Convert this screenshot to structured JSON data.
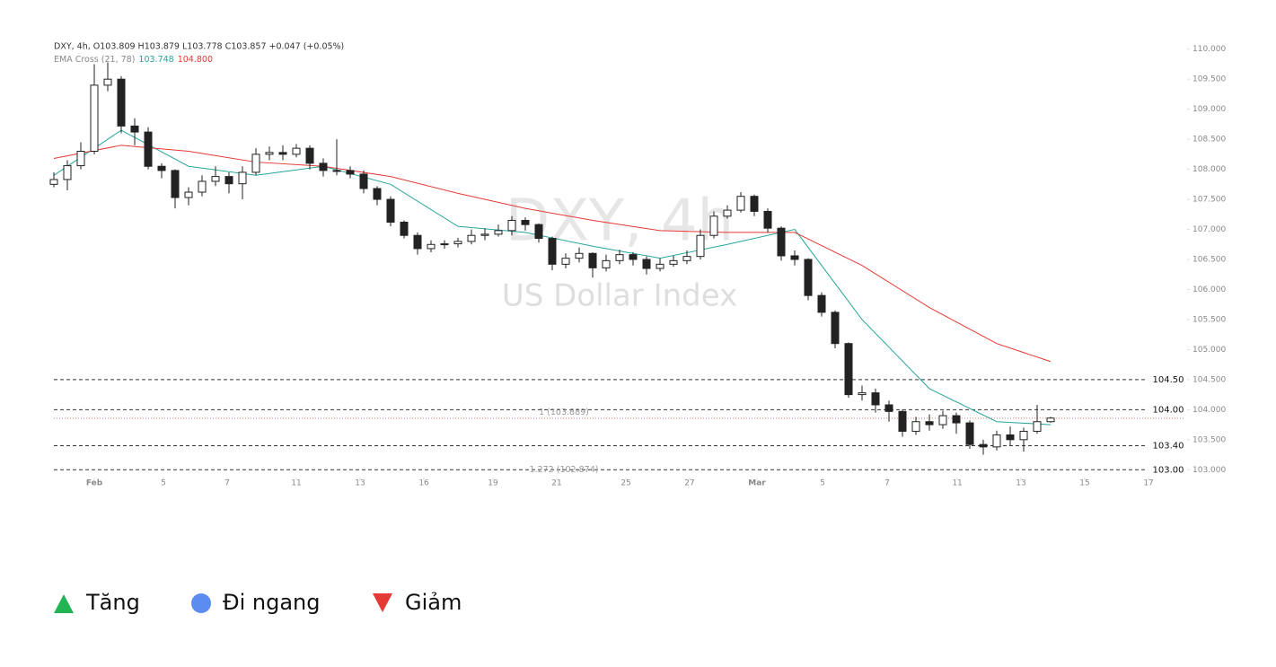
{
  "chart_data": {
    "type": "candlestick",
    "header": "DXY, 4h, O103.809 H103.879 L103.778 C103.857 +0.047 (+0.05%)",
    "indicator": "EMA Cross (21, 78)",
    "indicator_values": [
      {
        "text": "103.748",
        "color": "#26a69a"
      },
      {
        "text": "104.800",
        "color": "#e53935"
      }
    ],
    "watermark": "DXY, 4h",
    "watermark_subtitle": "US Dollar Index",
    "x": [
      0,
      1,
      2,
      3,
      4,
      5,
      6,
      7,
      8,
      9,
      10,
      11,
      12,
      13,
      14,
      15,
      16,
      17,
      18,
      19,
      20,
      21,
      22,
      23,
      24,
      25,
      26,
      27,
      28,
      29,
      30,
      31,
      32,
      33,
      34,
      35,
      36,
      37,
      38,
      39,
      40,
      41,
      42,
      43,
      44,
      45,
      46,
      47,
      48,
      49,
      50,
      51,
      52,
      53,
      54,
      55,
      56,
      57,
      58,
      59,
      60,
      61,
      62,
      63,
      64,
      65,
      66,
      67,
      68,
      69,
      70,
      71,
      72,
      73,
      74
    ],
    "open": [
      107.75,
      107.83,
      108.06,
      108.3,
      109.4,
      109.5,
      108.72,
      108.62,
      108.05,
      107.98,
      107.53,
      107.62,
      107.8,
      107.88,
      107.76,
      107.95,
      108.25,
      108.28,
      108.25,
      108.35,
      108.1,
      107.98,
      107.98,
      107.92,
      107.68,
      107.5,
      107.12,
      106.9,
      106.68,
      106.75,
      106.76,
      106.8,
      106.9,
      106.92,
      106.98,
      107.15,
      107.08,
      106.85,
      106.42,
      106.52,
      106.6,
      106.36,
      106.48,
      106.58,
      106.5,
      106.35,
      106.42,
      106.48,
      106.55,
      106.9,
      107.22,
      107.32,
      107.55,
      107.3,
      107.02,
      106.56,
      106.5,
      105.9,
      105.62,
      105.1,
      104.25,
      104.28,
      104.08,
      103.97,
      103.64,
      103.8,
      103.75,
      103.9,
      103.78,
      103.42,
      103.38,
      103.58,
      103.5,
      103.64,
      103.8
    ],
    "high": [
      107.95,
      108.15,
      108.45,
      109.75,
      109.78,
      109.55,
      108.85,
      108.7,
      108.1,
      108.0,
      107.7,
      107.9,
      108.05,
      107.95,
      108.05,
      108.35,
      108.38,
      108.4,
      108.42,
      108.4,
      108.18,
      108.5,
      108.05,
      107.98,
      107.72,
      107.55,
      107.15,
      106.95,
      106.82,
      106.82,
      106.86,
      107.0,
      107.02,
      107.08,
      107.22,
      107.2,
      107.1,
      106.88,
      106.6,
      106.7,
      106.62,
      106.58,
      106.66,
      106.62,
      106.55,
      106.52,
      106.56,
      106.65,
      107.0,
      107.3,
      107.4,
      107.62,
      107.58,
      107.35,
      107.05,
      106.65,
      106.52,
      105.95,
      105.65,
      105.12,
      104.4,
      104.35,
      104.15,
      104.0,
      103.88,
      103.92,
      103.98,
      103.95,
      103.82,
      103.5,
      103.65,
      103.72,
      103.7,
      104.08,
      103.88
    ],
    "low": [
      107.7,
      107.65,
      108.0,
      108.25,
      109.3,
      108.6,
      108.4,
      108.0,
      107.85,
      107.35,
      107.4,
      107.55,
      107.72,
      107.6,
      107.5,
      107.9,
      108.15,
      108.15,
      108.2,
      108.0,
      107.88,
      107.9,
      107.85,
      107.6,
      107.4,
      107.05,
      106.85,
      106.58,
      106.62,
      106.68,
      106.7,
      106.75,
      106.82,
      106.88,
      106.9,
      106.98,
      106.78,
      106.32,
      106.35,
      106.45,
      106.2,
      106.3,
      106.42,
      106.4,
      106.25,
      106.3,
      106.38,
      106.42,
      106.5,
      106.85,
      107.18,
      107.28,
      107.22,
      106.95,
      106.48,
      106.4,
      105.82,
      105.55,
      105.02,
      104.2,
      104.15,
      103.95,
      103.8,
      103.55,
      103.58,
      103.65,
      103.68,
      103.6,
      103.35,
      103.25,
      103.32,
      103.4,
      103.3,
      103.6,
      103.78
    ],
    "close": [
      107.83,
      108.06,
      108.3,
      109.4,
      109.5,
      108.72,
      108.62,
      108.05,
      107.98,
      107.53,
      107.62,
      107.8,
      107.88,
      107.76,
      107.95,
      108.25,
      108.28,
      108.25,
      108.35,
      108.1,
      107.98,
      107.98,
      107.92,
      107.68,
      107.5,
      107.12,
      106.9,
      106.68,
      106.75,
      106.76,
      106.8,
      106.9,
      106.92,
      106.98,
      107.15,
      107.08,
      106.85,
      106.42,
      106.52,
      106.6,
      106.36,
      106.48,
      106.58,
      106.5,
      106.35,
      106.42,
      106.48,
      106.55,
      106.9,
      107.22,
      107.32,
      107.55,
      107.3,
      107.02,
      106.56,
      106.5,
      105.9,
      105.62,
      105.1,
      104.25,
      104.28,
      104.08,
      103.97,
      103.64,
      103.8,
      103.75,
      103.9,
      103.78,
      103.42,
      103.38,
      103.58,
      103.5,
      103.64,
      103.8,
      103.86
    ],
    "up_color": "#ffffff",
    "down_color": "#222222",
    "outline_color": "#222222",
    "series": [
      {
        "color": "#26a69a",
        "x": [
          0,
          5,
          10,
          15,
          20,
          25,
          30,
          35,
          40,
          45,
          50,
          55,
          60,
          65,
          70,
          74
        ],
        "values": [
          107.9,
          108.65,
          108.05,
          107.9,
          108.05,
          107.75,
          107.05,
          106.95,
          106.72,
          106.52,
          106.75,
          107.0,
          105.5,
          104.35,
          103.8,
          103.75
        ]
      },
      {
        "color": "#e53935",
        "x": [
          0,
          5,
          10,
          15,
          20,
          25,
          30,
          35,
          40,
          45,
          50,
          55,
          60,
          65,
          70,
          74
        ],
        "values": [
          108.18,
          108.4,
          108.3,
          108.12,
          108.05,
          107.88,
          107.6,
          107.35,
          107.15,
          106.98,
          106.95,
          106.95,
          106.4,
          105.7,
          105.1,
          104.8
        ]
      }
    ],
    "levels": [
      {
        "value": 104.5,
        "label": "104.50"
      },
      {
        "value": 104.0,
        "label": "104.00"
      },
      {
        "value": 103.4,
        "label": "103.40"
      },
      {
        "value": 103.0,
        "label": "103.00"
      }
    ],
    "last_price": 103.857,
    "annotations": [
      {
        "value": 103.95,
        "text": "1 (103.889)"
      },
      {
        "value": 103.0,
        "text": "1.272 (102.874)"
      }
    ],
    "xlim": [
      0,
      84
    ],
    "xticks": [
      {
        "value": 3,
        "label": "Feb"
      },
      {
        "value": 8.13,
        "label": "5"
      },
      {
        "value": 12.87,
        "label": "7"
      },
      {
        "value": 18,
        "label": "11"
      },
      {
        "value": 22.73,
        "label": "13"
      },
      {
        "value": 27.47,
        "label": "16"
      },
      {
        "value": 32.6,
        "label": "19"
      },
      {
        "value": 37.33,
        "label": "21"
      },
      {
        "value": 42.47,
        "label": "25"
      },
      {
        "value": 47.2,
        "label": "27"
      },
      {
        "value": 52.2,
        "label": "Mar"
      },
      {
        "value": 57.07,
        "label": "5"
      },
      {
        "value": 61.87,
        "label": "7"
      },
      {
        "value": 67.07,
        "label": "11"
      },
      {
        "value": 71.8,
        "label": "13"
      },
      {
        "value": 76.53,
        "label": "15"
      },
      {
        "value": 81.27,
        "label": "17"
      }
    ],
    "ylim": [
      102.75,
      110.22
    ],
    "yticks": [
      {
        "value": 103,
        "label": "103.000"
      },
      {
        "value": 103.5,
        "label": "103.500"
      },
      {
        "value": 104,
        "label": "104.000"
      },
      {
        "value": 104.5,
        "label": "104.500"
      },
      {
        "value": 105,
        "label": "105.000"
      },
      {
        "value": 105.5,
        "label": "105.500"
      },
      {
        "value": 106,
        "label": "106.000"
      },
      {
        "value": 106.5,
        "label": "106.500"
      },
      {
        "value": 107,
        "label": "107.000"
      },
      {
        "value": 107.5,
        "label": "107.500"
      },
      {
        "value": 108,
        "label": "108.000"
      },
      {
        "value": 108.5,
        "label": "108.500"
      },
      {
        "value": 109,
        "label": "109.000"
      },
      {
        "value": 109.5,
        "label": "109.500"
      },
      {
        "value": 110,
        "label": "110.000"
      }
    ]
  },
  "legend": [
    {
      "text": "Tăng"
    },
    {
      "text": "Đi ngang"
    },
    {
      "text": "Giảm"
    }
  ]
}
